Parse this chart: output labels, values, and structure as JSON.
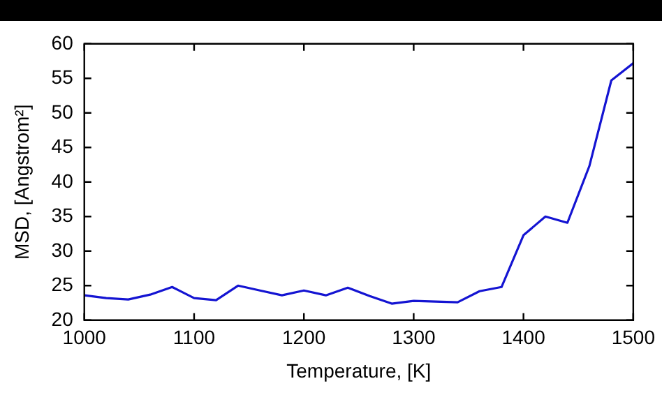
{
  "chart_data": {
    "type": "line",
    "xlabel": "Temperature, [K]",
    "ylabel": "MSD, [Angstrom²]",
    "x": [
      1000,
      1020,
      1040,
      1060,
      1080,
      1100,
      1120,
      1140,
      1160,
      1180,
      1200,
      1220,
      1240,
      1260,
      1280,
      1300,
      1320,
      1340,
      1360,
      1380,
      1400,
      1420,
      1440,
      1460,
      1480,
      1500
    ],
    "series": [
      {
        "color": "#1414d2",
        "values": [
          23.6,
          23.2,
          23.0,
          23.7,
          24.8,
          23.2,
          22.9,
          25.0,
          24.3,
          23.6,
          24.3,
          23.6,
          24.7,
          23.5,
          22.4,
          22.8,
          22.7,
          22.6,
          24.2,
          24.8,
          32.3,
          35.0,
          34.1,
          42.3,
          54.7,
          57.2
        ]
      }
    ],
    "xlim": [
      1000,
      1500
    ],
    "xticks": [
      1000,
      1100,
      1200,
      1300,
      1400,
      1500
    ],
    "ylim": [
      20,
      60
    ],
    "yticks": [
      20,
      25,
      30,
      35,
      40,
      45,
      50,
      55,
      60
    ],
    "grid": false,
    "legend": false,
    "marker": "none",
    "line_style": "solid"
  }
}
